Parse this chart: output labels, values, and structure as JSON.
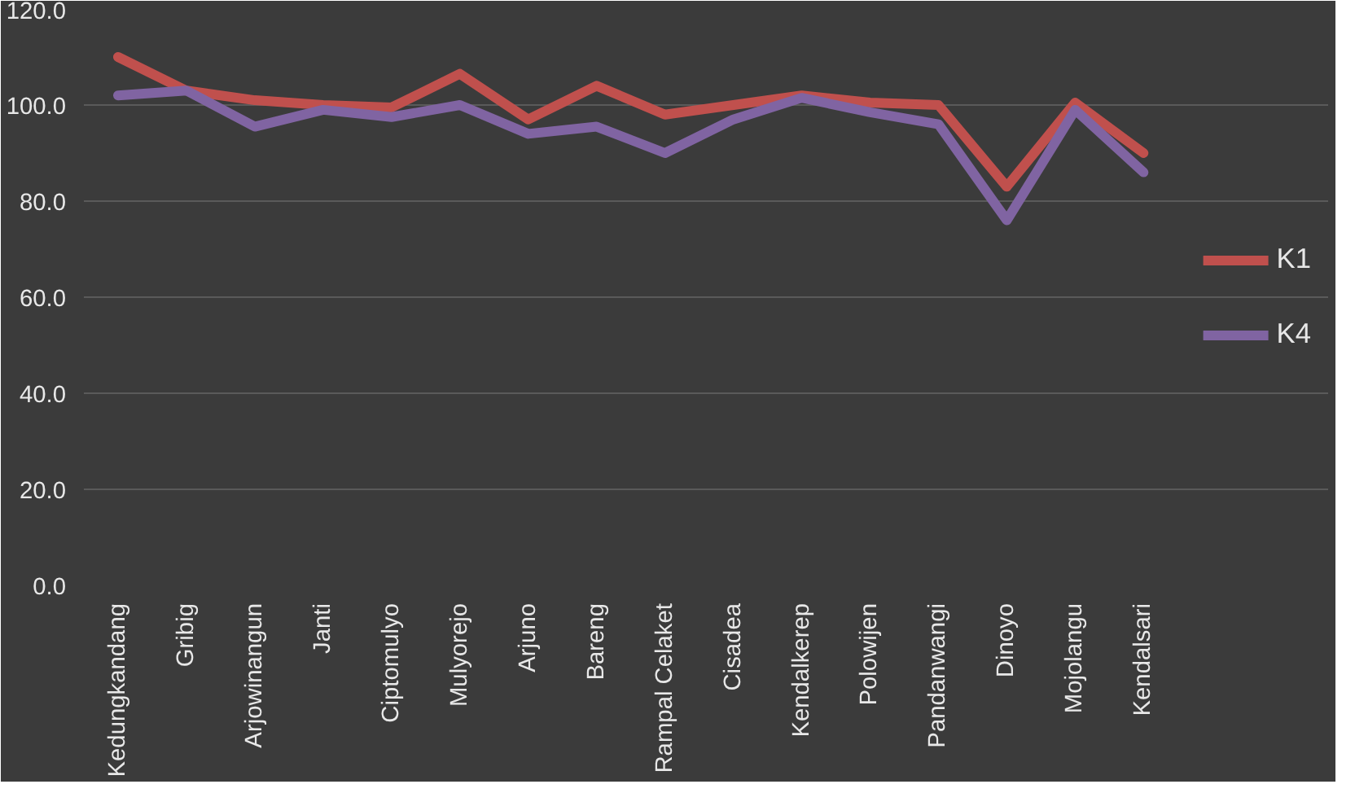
{
  "chart_data": {
    "type": "line",
    "categories": [
      "Kedungkandang",
      "Gribig",
      "Arjowinangun",
      "Janti",
      "Ciptomulyo",
      "Mulyorejo",
      "Arjuno",
      "Bareng",
      "Rampal Celaket",
      "Cisadea",
      "Kendalkerep",
      "Polowijen",
      "Pandanwangi",
      "Dinoyo",
      "Mojolangu",
      "Kendalsari"
    ],
    "series": [
      {
        "name": "K1",
        "color": "#c0504d",
        "values": [
          110,
          103,
          101,
          100,
          99.5,
          106.5,
          97,
          104,
          98,
          100,
          102,
          100.5,
          100,
          83,
          100.5,
          90
        ]
      },
      {
        "name": "K4",
        "color": "#8064a2",
        "values": [
          102,
          103,
          95.5,
          99,
          97.5,
          100,
          94,
          95.5,
          90,
          97,
          101.5,
          98.5,
          96,
          76,
          99,
          86
        ]
      }
    ],
    "ylim": [
      0,
      120
    ],
    "yticks": [
      {
        "value": 0,
        "label": "0.0"
      },
      {
        "value": 20,
        "label": "20.0"
      },
      {
        "value": 40,
        "label": "40.0"
      },
      {
        "value": 60,
        "label": "60.0"
      },
      {
        "value": 80,
        "label": "80.0"
      },
      {
        "value": 100,
        "label": "100.0"
      },
      {
        "value": 120,
        "label": "120.0"
      }
    ],
    "grid": "y",
    "legend": "right",
    "marker": "none",
    "line_style": "solid"
  }
}
